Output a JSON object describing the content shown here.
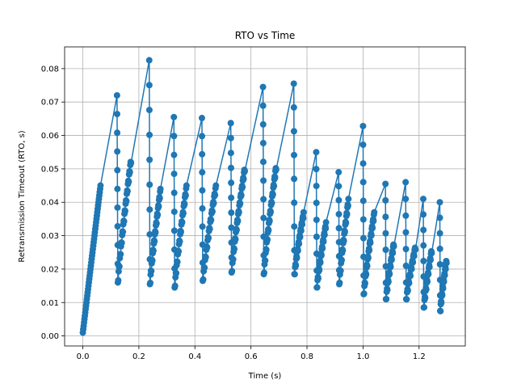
{
  "chart_data": {
    "type": "line",
    "title": "RTO vs Time",
    "xlabel": "Time (s)",
    "ylabel": "Retransmission Timeout (RTO, s)",
    "xlim": [
      -0.065,
      1.365
    ],
    "ylim": [
      -0.003,
      0.0865
    ],
    "xticks": [
      0.0,
      0.2,
      0.4,
      0.6,
      0.8,
      1.0,
      1.2
    ],
    "xtick_labels": [
      "0.0",
      "0.2",
      "0.4",
      "0.6",
      "0.8",
      "1.0",
      "1.2"
    ],
    "yticks": [
      0.0,
      0.01,
      0.02,
      0.03,
      0.04,
      0.05,
      0.06,
      0.07,
      0.08
    ],
    "ytick_labels": [
      "0.00",
      "0.01",
      "0.02",
      "0.03",
      "0.04",
      "0.05",
      "0.06",
      "0.07",
      "0.08"
    ],
    "grid": true,
    "series_color": "#1f77b4",
    "marker": "circle",
    "cycles": [
      {
        "t_start": 0.0,
        "t_end": 0.063,
        "rto_start": 0.001,
        "rto_end": 0.045,
        "n_points": 45
      },
      {
        "t_start": 0.122,
        "t_end": 0.172,
        "rto_start": 0.072,
        "rto_end": 0.053,
        "rto_min": 0.016,
        "n_points": 45
      },
      {
        "t_start": 0.237,
        "t_end": 0.277,
        "rto_start": 0.0825,
        "rto_end": 0.044,
        "rto_min": 0.0155,
        "n_points": 40
      },
      {
        "t_start": 0.325,
        "t_end": 0.37,
        "rto_start": 0.0655,
        "rto_end": 0.045,
        "rto_min": 0.0145,
        "n_points": 40
      },
      {
        "t_start": 0.425,
        "t_end": 0.475,
        "rto_start": 0.0652,
        "rto_end": 0.045,
        "rto_min": 0.0165,
        "n_points": 40
      },
      {
        "t_start": 0.528,
        "t_end": 0.578,
        "rto_start": 0.0637,
        "rto_end": 0.0505,
        "rto_min": 0.019,
        "n_points": 45
      },
      {
        "t_start": 0.643,
        "t_end": 0.69,
        "rto_start": 0.0745,
        "rto_end": 0.051,
        "rto_min": 0.0185,
        "n_points": 45
      },
      {
        "t_start": 0.753,
        "t_end": 0.788,
        "rto_start": 0.0755,
        "rto_end": 0.037,
        "rto_min": 0.0185,
        "n_points": 35
      },
      {
        "t_start": 0.833,
        "t_end": 0.868,
        "rto_start": 0.055,
        "rto_end": 0.034,
        "rto_min": 0.0145,
        "n_points": 35
      },
      {
        "t_start": 0.913,
        "t_end": 0.948,
        "rto_start": 0.049,
        "rto_end": 0.041,
        "rto_min": 0.0155,
        "n_points": 35
      },
      {
        "t_start": 1.0,
        "t_end": 1.04,
        "rto_start": 0.0628,
        "rto_end": 0.037,
        "rto_min": 0.0125,
        "n_points": 40
      },
      {
        "t_start": 1.08,
        "t_end": 1.11,
        "rto_start": 0.0455,
        "rto_end": 0.028,
        "rto_min": 0.011,
        "n_points": 30
      },
      {
        "t_start": 1.152,
        "t_end": 1.187,
        "rto_start": 0.046,
        "rto_end": 0.027,
        "rto_min": 0.011,
        "n_points": 30
      },
      {
        "t_start": 1.215,
        "t_end": 1.245,
        "rto_start": 0.041,
        "rto_end": 0.026,
        "rto_min": 0.0085,
        "n_points": 30
      },
      {
        "t_start": 1.274,
        "t_end": 1.298,
        "rto_start": 0.04,
        "rto_end": 0.023,
        "rto_min": 0.0075,
        "n_points": 30
      }
    ]
  }
}
